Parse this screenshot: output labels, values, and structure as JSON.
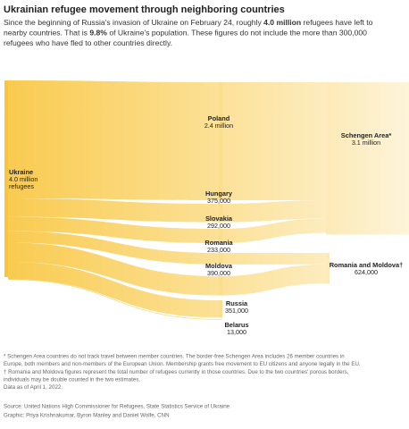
{
  "chart_data": {
    "type": "sankey",
    "title": "Ukrainian refugee movement through neighboring countries",
    "subtitle": [
      [
        "Since the beginning of Russia's invasion of Ukraine on February 24, roughly ",
        "4.0 million",
        " refugees have left to"
      ],
      [
        "nearby countries. That is ",
        "9.8%",
        " of Ukraine's population. These figures do not include the more than 300,000"
      ],
      [
        "refugees who have fled to other countries directly."
      ]
    ],
    "nodes": [
      {
        "name": "Ukraine",
        "value": 4000000,
        "value_label": "4.0 million",
        "note": "refugees"
      },
      {
        "name": "Poland",
        "value": 2400000,
        "value_label": "2.4 million"
      },
      {
        "name": "Hungary",
        "value": 375000,
        "value_label": "375,000"
      },
      {
        "name": "Slovakia",
        "value": 292000,
        "value_label": "292,000"
      },
      {
        "name": "Romania",
        "value": 233000,
        "value_label": "233,000"
      },
      {
        "name": "Moldova",
        "value": 390000,
        "value_label": "390,000"
      },
      {
        "name": "Russia",
        "value": 351000,
        "value_label": "351,000"
      },
      {
        "name": "Belarus",
        "value": 13000,
        "value_label": "13,000"
      },
      {
        "name": "Schengen Area*",
        "value": 3100000,
        "value_label": "3.1 million"
      },
      {
        "name": "Romania and Moldova†",
        "value": 624000,
        "value_label": "624,000"
      }
    ],
    "links": [
      [
        0,
        1
      ],
      [
        0,
        2
      ],
      [
        0,
        3
      ],
      [
        0,
        4
      ],
      [
        0,
        5
      ],
      [
        0,
        6
      ],
      [
        0,
        7
      ],
      [
        1,
        8
      ],
      [
        2,
        8
      ],
      [
        3,
        8
      ],
      [
        4,
        9
      ],
      [
        5,
        9
      ]
    ],
    "color": "#f8c43a",
    "notes": [
      "* Schengen Area countries do not track travel between member countries. The border-free Schengen Area includes 26 member countries in",
      "Europe, both members and non-members of the European Union. Membership grants free movement to EU citizens and anyone legally in the EU.",
      "† Romania and Moldova figures represent the total number of refugees currently in those countries. Due to the two countries' porous borders,",
      "individuals may be double counted in the two estimates.",
      "Data as of April 1, 2022."
    ],
    "source": "Source: United Nations High Commissioner for Refugees, State Statistics Service of Ukraine",
    "credit": "Graphic: Priya Krishnakumar, Byron Manley and Daniel Wolfe, CNN"
  }
}
